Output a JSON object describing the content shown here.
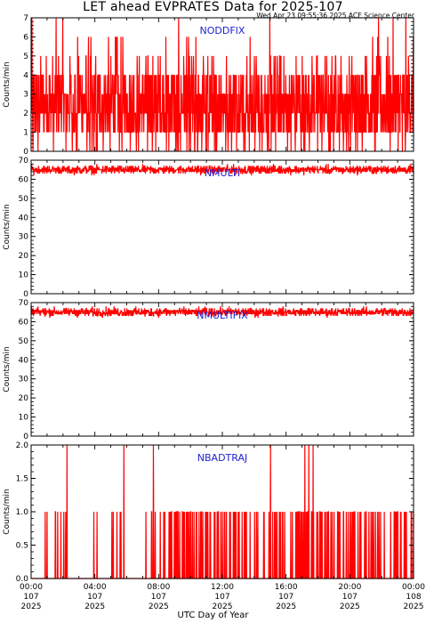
{
  "header": {
    "title": "LET ahead EVPRATES Data for 2025-107",
    "timestamp": "Wed Apr 23 09:55:36 2025 ACE Science Center"
  },
  "colors": {
    "data": "#ff0000",
    "panel_title": "#1f1fd0",
    "axes": "#000000"
  },
  "chart_data": [
    {
      "type": "line",
      "title": "NODDFIX",
      "ylabel": "Counts/min",
      "ylim": [
        0,
        7
      ],
      "yticks": [
        "0",
        "1",
        "2",
        "3",
        "4",
        "5",
        "6",
        "7"
      ],
      "xlim_hours": [
        0,
        24
      ],
      "description_of_series": "integer counts per minute, mostly 1-4 with occasional spikes to 5-7",
      "series": [
        {
          "values_range": [
            0,
            7
          ],
          "typical": [
            1,
            4
          ]
        }
      ]
    },
    {
      "type": "line",
      "title": "NMULTI",
      "ylabel": "Counts/min",
      "ylim": [
        0,
        70
      ],
      "yticks": [
        "0",
        "10",
        "20",
        "30",
        "40",
        "50",
        "60",
        "70"
      ],
      "xlim_hours": [
        0,
        24
      ],
      "series": [
        {
          "values_range": [
            62,
            68
          ],
          "typical": [
            64,
            66
          ]
        }
      ]
    },
    {
      "type": "line",
      "title": "NMULTIFIX",
      "ylabel": "Counts/min",
      "ylim": [
        0,
        70
      ],
      "yticks": [
        "0",
        "10",
        "20",
        "30",
        "40",
        "50",
        "60",
        "70"
      ],
      "xlim_hours": [
        0,
        24
      ],
      "series": [
        {
          "values_range": [
            62,
            69
          ],
          "typical": [
            64,
            66
          ]
        }
      ]
    },
    {
      "type": "line",
      "title": "NBADTRAJ",
      "ylabel": "Counts/min",
      "ylim": [
        0,
        2
      ],
      "yticks": [
        "0.0",
        "0.5",
        "1.0",
        "1.5",
        "2.0"
      ],
      "xlim_hours": [
        0,
        24
      ],
      "series": [
        {
          "values_range": [
            0,
            2
          ],
          "typical": [
            0,
            1
          ]
        }
      ]
    }
  ],
  "xaxis": {
    "title": "UTC Day of Year",
    "ticks": [
      {
        "time": "00:00",
        "doy": "107",
        "year": "2025"
      },
      {
        "time": "04:00",
        "doy": "107",
        "year": "2025"
      },
      {
        "time": "08:00",
        "doy": "107",
        "year": "2025"
      },
      {
        "time": "12:00",
        "doy": "107",
        "year": "2025"
      },
      {
        "time": "16:00",
        "doy": "107",
        "year": "2025"
      },
      {
        "time": "20:00",
        "doy": "107",
        "year": "2025"
      },
      {
        "time": "00:00",
        "doy": "108",
        "year": "2025"
      }
    ]
  }
}
